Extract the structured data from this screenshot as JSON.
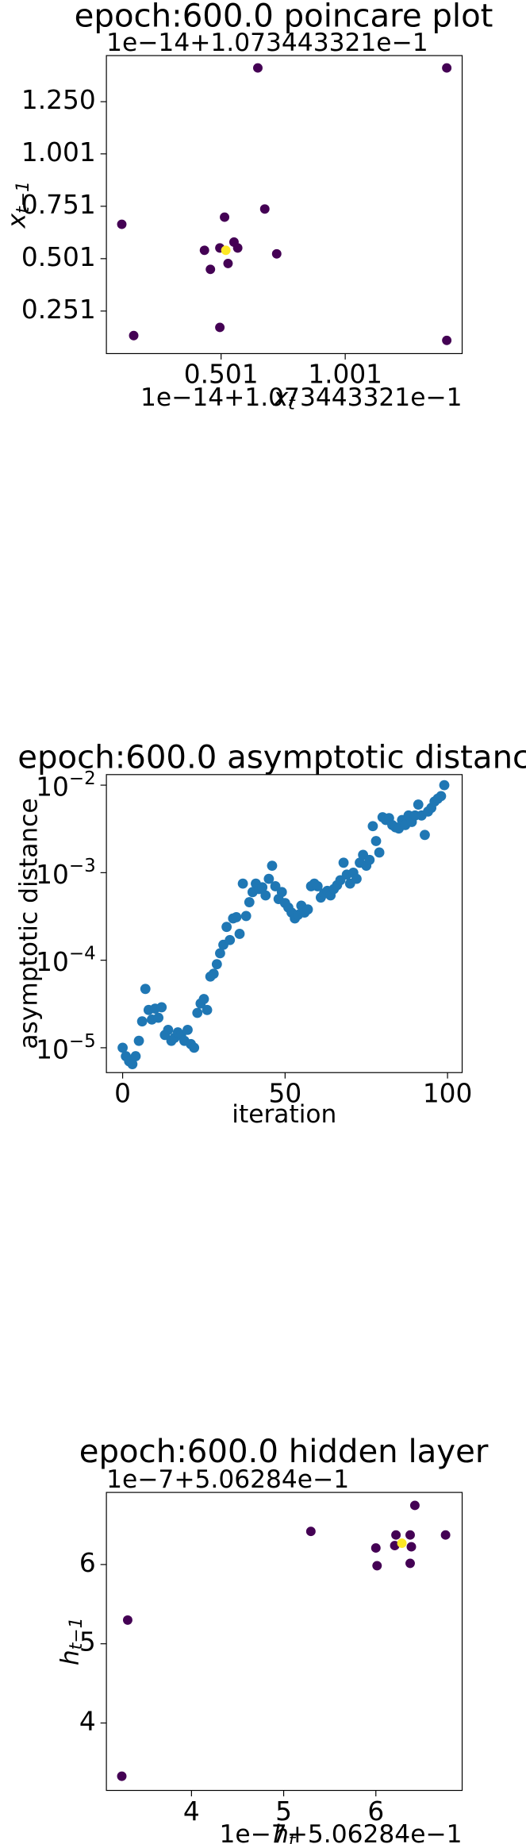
{
  "chart_data": [
    {
      "type": "scatter",
      "title": "epoch:600.0 poincare plot",
      "x_label": "x_{t}",
      "y_label": "x_{t−1}",
      "x_offset_text": "1e−14+1.073443321e−1",
      "y_offset_text": "1e−14+1.073443321e−1",
      "x": [
        0.649,
        1.41,
        0.101,
        0.149,
        1.41,
        0.496,
        0.515,
        0.677,
        0.725,
        0.434,
        0.458,
        0.529,
        0.553,
        0.568,
        0.496,
        0.52
      ],
      "values": [
        1.411,
        1.411,
        0.665,
        0.134,
        0.111,
        0.173,
        0.699,
        0.738,
        0.524,
        0.541,
        0.45,
        0.478,
        0.58,
        0.552,
        0.552,
        0.541
      ],
      "point_colors": [
        "#440154",
        "#440154",
        "#440154",
        "#440154",
        "#440154",
        "#440154",
        "#440154",
        "#440154",
        "#440154",
        "#440154",
        "#440154",
        "#440154",
        "#440154",
        "#440154",
        "#440154",
        "#fde725"
      ],
      "xlim": [
        0.039,
        1.472
      ],
      "ylim": [
        0.048,
        1.47
      ],
      "xticks": [
        0.501,
        1.001
      ],
      "yticks": [
        0.251,
        0.501,
        0.751,
        1.001,
        {
          "value": 1.25,
          "label": "1.250"
        }
      ]
    },
    {
      "type": "scatter",
      "title": "epoch:600.0 asymptotic distance",
      "x_label": "iteration",
      "y_label": "asymptotic distance",
      "log_y": true,
      "color": "#1f77b4",
      "x": [
        0,
        1,
        2,
        3,
        4,
        5,
        6,
        7,
        8,
        9,
        10,
        11,
        12,
        13,
        14,
        15,
        16,
        17,
        18,
        19,
        20,
        21,
        22,
        23,
        24,
        25,
        26,
        27,
        28,
        29,
        30,
        31,
        32,
        33,
        34,
        35,
        36,
        37,
        38,
        39,
        40,
        41,
        42,
        43,
        44,
        45,
        46,
        47,
        48,
        49,
        50,
        51,
        52,
        53,
        54,
        55,
        56,
        57,
        58,
        59,
        60,
        61,
        62,
        63,
        64,
        65,
        66,
        67,
        68,
        69,
        70,
        71,
        72,
        73,
        74,
        75,
        76,
        77,
        78,
        79,
        80,
        81,
        82,
        83,
        84,
        85,
        86,
        87,
        88,
        89,
        90,
        91,
        92,
        93,
        94,
        95,
        96,
        97,
        98,
        99
      ],
      "values": [
        1e-05,
        8e-06,
        7e-06,
        6.5e-06,
        8e-06,
        1.2e-05,
        2e-05,
        4.7e-05,
        2.7e-05,
        2.1e-05,
        2.8e-05,
        2.2e-05,
        2.9e-05,
        1.4e-05,
        1.6e-05,
        1.2e-05,
        1.3e-05,
        1.5e-05,
        1.4e-05,
        1.2e-05,
        1.6e-05,
        1.1e-05,
        1e-05,
        2.5e-05,
        3.2e-05,
        3.6e-05,
        2.7e-05,
        6.5e-05,
        7e-05,
        9e-05,
        0.00012,
        0.00015,
        0.00024,
        0.00017,
        0.0003,
        0.00031,
        0.0002,
        0.00075,
        0.00032,
        0.00046,
        0.0006,
        0.00075,
        0.00065,
        0.00068,
        0.00055,
        0.00085,
        0.0012,
        0.0007,
        0.0005,
        0.0006,
        0.00045,
        0.0004,
        0.00035,
        0.0003,
        0.00033,
        0.00042,
        0.00035,
        0.00038,
        0.0007,
        0.00075,
        0.0007,
        0.00052,
        0.00058,
        0.00062,
        0.00055,
        0.00065,
        0.00072,
        0.00082,
        0.0013,
        0.00095,
        0.00075,
        0.001,
        0.00085,
        0.0013,
        0.0016,
        0.0012,
        0.0014,
        0.0034,
        0.0023,
        0.0017,
        0.0043,
        0.004,
        0.0042,
        0.0035,
        0.0033,
        0.0032,
        0.004,
        0.0035,
        0.0045,
        0.0038,
        0.0045,
        0.006,
        0.0045,
        0.0027,
        0.005,
        0.0055,
        0.0065,
        0.007,
        0.0075,
        0.01
      ],
      "xlim": [
        -5,
        104.5
      ],
      "ylim": [
        5.2e-06,
        0.0132
      ],
      "xticks": [
        0,
        50,
        100
      ],
      "yticks": [
        {
          "value": 1e-05,
          "label": "10^{−5}"
        },
        {
          "value": 0.0001,
          "label": "10^{−4}"
        },
        {
          "value": 0.001,
          "label": "10^{−3}"
        },
        {
          "value": 0.01,
          "label": "10^{−2}"
        }
      ]
    },
    {
      "type": "scatter",
      "title": "epoch:600.0 hidden layer",
      "x_label": "h_{t}",
      "y_label": "h_{t−1}",
      "x_offset_text": "1e−7+5.06284e−1",
      "y_offset_text": "1e−7+5.06284e−1",
      "x": [
        3.244,
        3.308,
        5.295,
        6.0,
        6.013,
        6.218,
        6.372,
        6.423,
        6.756,
        6.372,
        6.385,
        6.205,
        6.282
      ],
      "values": [
        3.328,
        5.299,
        6.418,
        6.209,
        5.985,
        6.373,
        6.373,
        6.746,
        6.373,
        6.015,
        6.224,
        6.239,
        6.269
      ],
      "point_colors": [
        "#440154",
        "#440154",
        "#440154",
        "#440154",
        "#440154",
        "#440154",
        "#440154",
        "#440154",
        "#440154",
        "#440154",
        "#440154",
        "#440154",
        "#fde725"
      ],
      "xlim": [
        3.077,
        6.936
      ],
      "ylim": [
        3.149,
        6.91
      ],
      "xticks": [
        4,
        5,
        6
      ],
      "yticks": [
        4,
        5,
        6
      ]
    }
  ]
}
